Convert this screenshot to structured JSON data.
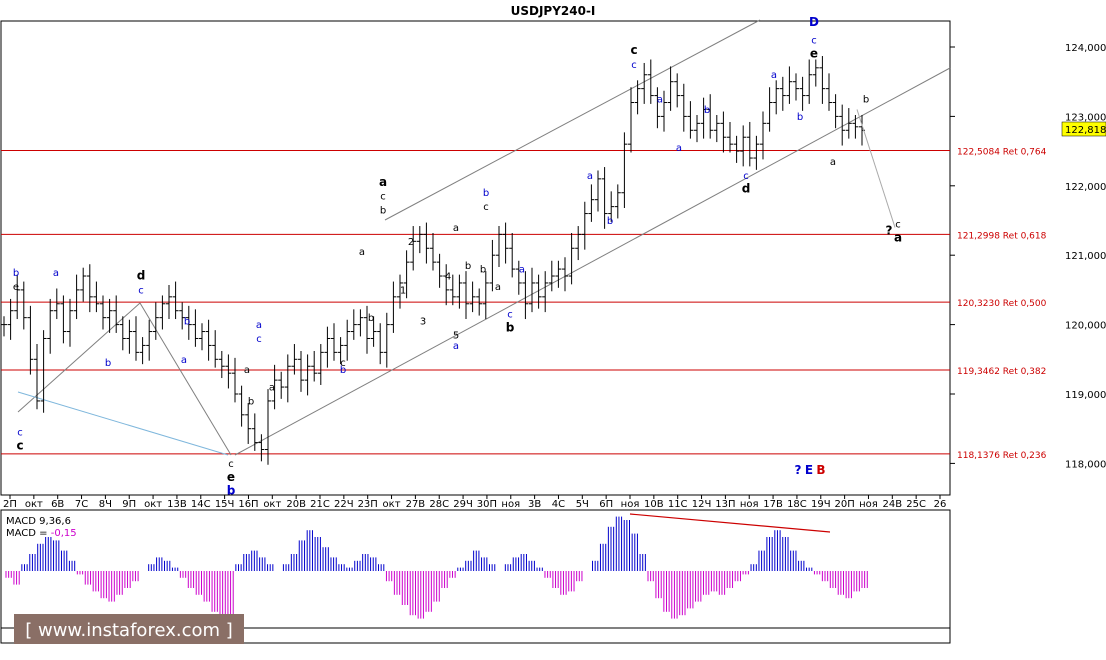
{
  "chart": {
    "title": "USDJPY240-I",
    "current_price": "122,818",
    "watermark": "[ www.instaforex.com ]",
    "colors": {
      "bg": "#ffffff",
      "bar": "#000000",
      "level": "#cc0000",
      "channel": "#808080",
      "macd_pos": "#0000cc",
      "macd_neg": "#cc00cc",
      "current_tag": "#ffff00"
    }
  },
  "chart_data": {
    "type": "ohlc",
    "title": "USDJPY240-I",
    "ylim": [
      117.45,
      124.7
    ],
    "y_ticks": [
      {
        "v": 124.0,
        "label": "124,000"
      },
      {
        "v": 123.0,
        "label": "123,000"
      },
      {
        "v": 122.0,
        "label": "122,000"
      },
      {
        "v": 121.0,
        "label": "121,000"
      },
      {
        "v": 120.0,
        "label": "120,000"
      },
      {
        "v": 119.0,
        "label": "119,000"
      },
      {
        "v": 118.0,
        "label": "118,000"
      }
    ],
    "x_ticks": [
      "2П",
      "окт",
      "6В",
      "7С",
      "8Ч",
      "9П",
      "окт",
      "13В",
      "14С",
      "15Ч",
      "16П",
      "окт",
      "20В",
      "21С",
      "22Ч",
      "23П",
      "окт",
      "27В",
      "28С",
      "29Ч",
      "30П",
      "ноя",
      "3В",
      "4С",
      "5Ч",
      "6П",
      "ноя",
      "10В",
      "11С",
      "12Ч",
      "13П",
      "ноя",
      "17В",
      "18С",
      "19Ч",
      "20П",
      "ноя",
      "24В",
      "25С",
      "26"
    ],
    "levels": [
      {
        "price": 122.5084,
        "label": "122,5084 Ret 0,764"
      },
      {
        "price": 121.2998,
        "label": "121,2998 Ret 0,618"
      },
      {
        "price": 120.323,
        "label": "120,3230 Ret 0,500"
      },
      {
        "price": 119.3462,
        "label": "119,3462 Ret 0,382"
      },
      {
        "price": 118.1376,
        "label": "118,1376 Ret 0,236"
      }
    ],
    "closes": [
      120.0,
      120.2,
      120.5,
      120.1,
      119.5,
      118.9,
      119.8,
      120.2,
      120.3,
      119.9,
      120.2,
      120.5,
      120.7,
      120.4,
      120.3,
      120.1,
      120.2,
      120.0,
      119.8,
      119.9,
      119.6,
      119.7,
      119.9,
      120.1,
      120.3,
      120.4,
      120.2,
      120.1,
      120.0,
      119.8,
      119.9,
      119.7,
      119.5,
      119.4,
      119.3,
      119.0,
      118.7,
      118.5,
      118.3,
      118.2,
      118.9,
      119.2,
      119.1,
      119.4,
      119.5,
      119.2,
      119.4,
      119.3,
      119.6,
      119.8,
      119.6,
      119.7,
      119.9,
      120.0,
      120.1,
      119.8,
      119.9,
      119.6,
      120.0,
      120.4,
      120.6,
      120.9,
      121.2,
      121.3,
      121.1,
      120.9,
      120.7,
      120.5,
      120.4,
      120.6,
      120.3,
      120.4,
      120.3,
      120.6,
      121.0,
      121.3,
      121.1,
      120.8,
      120.6,
      120.3,
      120.6,
      120.4,
      120.6,
      120.7,
      120.8,
      120.7,
      121.1,
      121.3,
      121.6,
      121.8,
      122.1,
      121.6,
      121.7,
      121.9,
      122.6,
      123.2,
      123.4,
      123.6,
      123.3,
      123.0,
      123.2,
      123.5,
      123.3,
      123.0,
      122.8,
      122.9,
      123.1,
      122.8,
      122.9,
      122.7,
      122.6,
      122.5,
      122.7,
      122.4,
      122.6,
      122.9,
      123.2,
      123.4,
      123.3,
      123.5,
      123.4,
      123.3,
      123.6,
      123.7,
      123.4,
      123.2,
      123.0,
      122.8,
      122.9,
      122.85,
      122.8
    ],
    "projection": [
      {
        "x": 857,
        "price": 123.1
      },
      {
        "x": 895,
        "price": 121.4
      }
    ],
    "wave_labels": [
      {
        "text": "b",
        "x": 16,
        "p": 120.7,
        "c": "#0000cc",
        "b": false
      },
      {
        "text": "e",
        "x": 16,
        "p": 120.5,
        "c": "#000000",
        "b": false
      },
      {
        "text": "c",
        "x": 20,
        "p": 118.4,
        "c": "#0000cc",
        "b": false
      },
      {
        "text": "c",
        "x": 20,
        "p": 118.2,
        "c": "#000000",
        "b": true
      },
      {
        "text": "a",
        "x": 56,
        "p": 120.7,
        "c": "#0000cc",
        "b": false
      },
      {
        "text": "b",
        "x": 108,
        "p": 119.4,
        "c": "#0000cc",
        "b": false
      },
      {
        "text": "d",
        "x": 141,
        "p": 120.65,
        "c": "#000000",
        "b": true
      },
      {
        "text": "c",
        "x": 141,
        "p": 120.45,
        "c": "#0000cc",
        "b": false
      },
      {
        "text": "b",
        "x": 187,
        "p": 120.0,
        "c": "#0000cc",
        "b": false
      },
      {
        "text": "a",
        "x": 184,
        "p": 119.45,
        "c": "#0000cc",
        "b": false
      },
      {
        "text": "c",
        "x": 231,
        "p": 117.95,
        "c": "#000000",
        "b": false
      },
      {
        "text": "e",
        "x": 231,
        "p": 117.75,
        "c": "#000000",
        "b": true
      },
      {
        "text": "b",
        "x": 231,
        "p": 117.55,
        "c": "#0000cc",
        "b": true
      },
      {
        "text": "a",
        "x": 259,
        "p": 119.95,
        "c": "#0000cc",
        "b": false
      },
      {
        "text": "c",
        "x": 259,
        "p": 119.75,
        "c": "#0000cc",
        "b": false
      },
      {
        "text": "a",
        "x": 247,
        "p": 119.3,
        "c": "#000000",
        "b": false
      },
      {
        "text": "b",
        "x": 251,
        "p": 118.85,
        "c": "#000000",
        "b": false
      },
      {
        "text": "a",
        "x": 272,
        "p": 119.05,
        "c": "#000000",
        "b": false
      },
      {
        "text": "c",
        "x": 343,
        "p": 119.4,
        "c": "#000000",
        "b": false
      },
      {
        "text": "b",
        "x": 343,
        "p": 119.3,
        "c": "#0000cc",
        "b": false
      },
      {
        "text": "a",
        "x": 362,
        "p": 121.0,
        "c": "#000000",
        "b": false
      },
      {
        "text": "b",
        "x": 371,
        "p": 120.05,
        "c": "#000000",
        "b": false
      },
      {
        "text": "a",
        "x": 383,
        "p": 122.0,
        "c": "#000000",
        "b": true
      },
      {
        "text": "c",
        "x": 383,
        "p": 121.8,
        "c": "#000000",
        "b": false
      },
      {
        "text": "b",
        "x": 383,
        "p": 121.6,
        "c": "#000000",
        "b": false
      },
      {
        "text": "2",
        "x": 411,
        "p": 121.15,
        "c": "#000000",
        "b": false
      },
      {
        "text": "1",
        "x": 403,
        "p": 120.45,
        "c": "#000000",
        "b": false
      },
      {
        "text": "3",
        "x": 423,
        "p": 120.0,
        "c": "#000000",
        "b": false
      },
      {
        "text": "4",
        "x": 448,
        "p": 120.65,
        "c": "#000000",
        "b": false
      },
      {
        "text": "a",
        "x": 456,
        "p": 121.35,
        "c": "#000000",
        "b": false
      },
      {
        "text": "5",
        "x": 456,
        "p": 119.8,
        "c": "#000000",
        "b": false
      },
      {
        "text": "a",
        "x": 456,
        "p": 119.65,
        "c": "#0000cc",
        "b": false
      },
      {
        "text": "b",
        "x": 468,
        "p": 120.8,
        "c": "#000000",
        "b": false
      },
      {
        "text": "b",
        "x": 486,
        "p": 121.85,
        "c": "#0000cc",
        "b": false
      },
      {
        "text": "c",
        "x": 486,
        "p": 121.65,
        "c": "#000000",
        "b": false
      },
      {
        "text": "b",
        "x": 483,
        "p": 120.75,
        "c": "#000000",
        "b": false
      },
      {
        "text": "a",
        "x": 498,
        "p": 120.5,
        "c": "#000000",
        "b": false
      },
      {
        "text": "a",
        "x": 522,
        "p": 120.75,
        "c": "#0000cc",
        "b": false
      },
      {
        "text": "c",
        "x": 510,
        "p": 120.1,
        "c": "#0000cc",
        "b": false
      },
      {
        "text": "b",
        "x": 510,
        "p": 119.9,
        "c": "#000000",
        "b": true
      },
      {
        "text": "a",
        "x": 590,
        "p": 122.1,
        "c": "#0000cc",
        "b": false
      },
      {
        "text": "b",
        "x": 610,
        "p": 121.45,
        "c": "#0000cc",
        "b": false
      },
      {
        "text": "c",
        "x": 634,
        "p": 123.9,
        "c": "#000000",
        "b": true
      },
      {
        "text": "c",
        "x": 634,
        "p": 123.7,
        "c": "#0000cc",
        "b": false
      },
      {
        "text": "a",
        "x": 660,
        "p": 123.2,
        "c": "#0000cc",
        "b": false
      },
      {
        "text": "b",
        "x": 707,
        "p": 123.05,
        "c": "#0000cc",
        "b": false
      },
      {
        "text": "a",
        "x": 679,
        "p": 122.5,
        "c": "#0000cc",
        "b": false
      },
      {
        "text": "c",
        "x": 746,
        "p": 122.1,
        "c": "#0000cc",
        "b": false
      },
      {
        "text": "d",
        "x": 746,
        "p": 121.9,
        "c": "#000000",
        "b": true
      },
      {
        "text": "a",
        "x": 774,
        "p": 123.55,
        "c": "#0000cc",
        "b": false
      },
      {
        "text": "b",
        "x": 800,
        "p": 122.95,
        "c": "#0000cc",
        "b": false
      },
      {
        "text": "D",
        "x": 814,
        "p": 124.3,
        "c": "#0000cc",
        "b": true
      },
      {
        "text": "c",
        "x": 814,
        "p": 124.05,
        "c": "#0000cc",
        "b": false
      },
      {
        "text": "e",
        "x": 814,
        "p": 123.85,
        "c": "#000000",
        "b": true
      },
      {
        "text": "a",
        "x": 833,
        "p": 122.3,
        "c": "#000000",
        "b": false
      },
      {
        "text": "b",
        "x": 866,
        "p": 123.2,
        "c": "#000000",
        "b": false
      },
      {
        "text": "?",
        "x": 889,
        "p": 121.3,
        "c": "#000000",
        "b": true
      },
      {
        "text": "c",
        "x": 898,
        "p": 121.4,
        "c": "#000000",
        "b": false
      },
      {
        "text": "a",
        "x": 898,
        "p": 121.2,
        "c": "#000000",
        "b": true
      },
      {
        "text": "?",
        "x": 798,
        "p": 117.85,
        "c": "#0000cc",
        "b": true
      },
      {
        "text": "E",
        "x": 809,
        "p": 117.85,
        "c": "#0000cc",
        "b": true
      },
      {
        "text": "B",
        "x": 821,
        "p": 117.85,
        "c": "#cc0000",
        "b": true
      }
    ],
    "macd": {
      "label": "MACD 9,36,6",
      "value_label": "MACD =",
      "value": "-0,15",
      "hist": [
        -0.2,
        -0.4,
        0.2,
        0.5,
        0.8,
        1.0,
        0.9,
        0.6,
        0.3,
        -0.1,
        -0.4,
        -0.6,
        -0.8,
        -0.9,
        -0.7,
        -0.5,
        -0.3,
        0.0,
        0.2,
        0.4,
        0.3,
        0.1,
        -0.2,
        -0.5,
        -0.7,
        -0.9,
        -1.2,
        -1.5,
        -1.4,
        0.2,
        0.5,
        0.6,
        0.4,
        0.2,
        0.0,
        0.2,
        0.5,
        0.9,
        1.2,
        1.0,
        0.7,
        0.4,
        0.2,
        0.1,
        0.3,
        0.5,
        0.4,
        0.2,
        -0.3,
        -0.7,
        -1.0,
        -1.3,
        -1.4,
        -1.2,
        -0.9,
        -0.5,
        -0.2,
        0.1,
        0.3,
        0.6,
        0.4,
        0.2,
        0.0,
        0.2,
        0.4,
        0.5,
        0.3,
        0.1,
        -0.2,
        -0.5,
        -0.7,
        -0.6,
        -0.3,
        0.0,
        0.3,
        0.8,
        1.3,
        1.6,
        1.5,
        1.1,
        0.5,
        -0.3,
        -0.8,
        -1.2,
        -1.4,
        -1.3,
        -1.1,
        -0.9,
        -0.7,
        -0.6,
        -0.7,
        -0.5,
        -0.3,
        -0.1,
        0.2,
        0.6,
        1.0,
        1.2,
        1.0,
        0.6,
        0.3,
        0.1,
        -0.1,
        -0.3,
        -0.5,
        -0.7,
        -0.8,
        -0.6,
        -0.5
      ]
    }
  }
}
